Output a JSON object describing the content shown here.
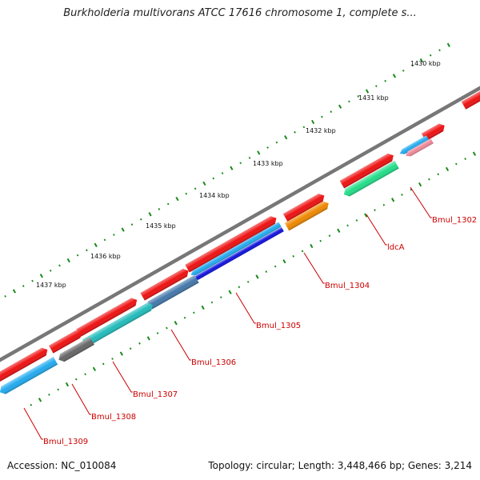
{
  "title": "Burkholderia multivorans ATCC 17616 chromosome 1, complete s...",
  "accession_text": "Accession: NC_010084",
  "summary_text": "Topology: circular; Length: 3,448,466 bp; Genes: 3,214",
  "colors": {
    "backbone": "#777777",
    "tick": "#1a8a1a",
    "label": "#cc0000",
    "cds_red": "#ee1111",
    "sky": "#22aaee",
    "blue": "#1111dd",
    "steel": "#4477aa",
    "teal": "#22bbbb",
    "gray": "#666666",
    "orange": "#ee8800",
    "green": "#22dd88",
    "pink": "#ee8899"
  },
  "kbp_labels": [
    "1430 kbp",
    "1431 kbp",
    "1432 kbp",
    "1433 kbp",
    "1434 kbp",
    "1435 kbp",
    "1436 kbp",
    "1437 kbp"
  ],
  "gene_labels": [
    "Bmul_1302",
    "ldcA",
    "Bmul_1304",
    "Bmul_1305",
    "Bmul_1306",
    "Bmul_1307",
    "Bmul_1308",
    "Bmul_1309"
  ]
}
